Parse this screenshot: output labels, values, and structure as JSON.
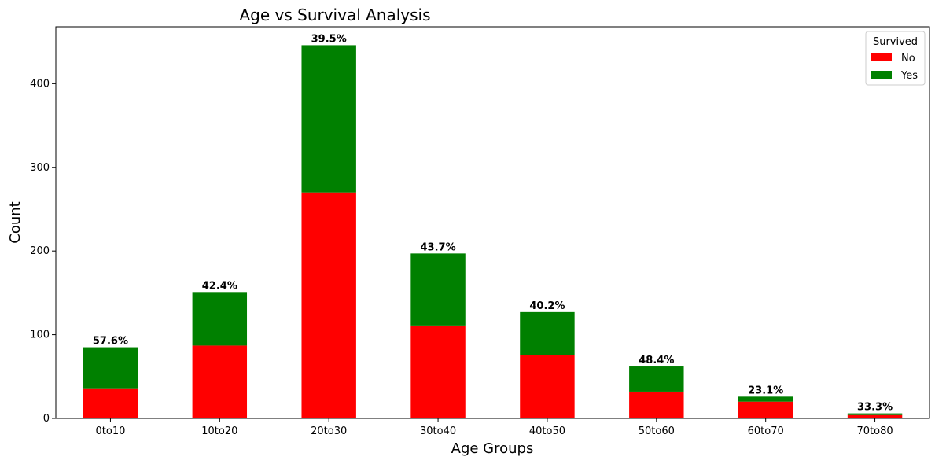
{
  "chart_data": {
    "type": "bar",
    "title": "Age vs Survival Analysis",
    "xlabel": "Age Groups",
    "ylabel": "Count",
    "stacked": true,
    "categories": [
      "0to10",
      "10to20",
      "20to30",
      "30to40",
      "40to50",
      "50to60",
      "60to70",
      "70to80"
    ],
    "series": [
      {
        "name": "No",
        "values": [
          36,
          87,
          270,
          111,
          76,
          32,
          20,
          4
        ],
        "color": "#ff0000"
      },
      {
        "name": "Yes",
        "values": [
          49,
          64,
          176,
          86,
          51,
          30,
          6,
          2
        ],
        "color": "#008000"
      }
    ],
    "bar_labels": [
      "57.6%",
      "42.4%",
      "39.5%",
      "43.7%",
      "40.2%",
      "48.4%",
      "23.1%",
      "33.3%"
    ],
    "yticks": [
      0,
      100,
      200,
      300,
      400
    ],
    "ylim": [
      0,
      468
    ],
    "legend": {
      "title": "Survived",
      "placement": "top-right"
    },
    "grid": false
  }
}
